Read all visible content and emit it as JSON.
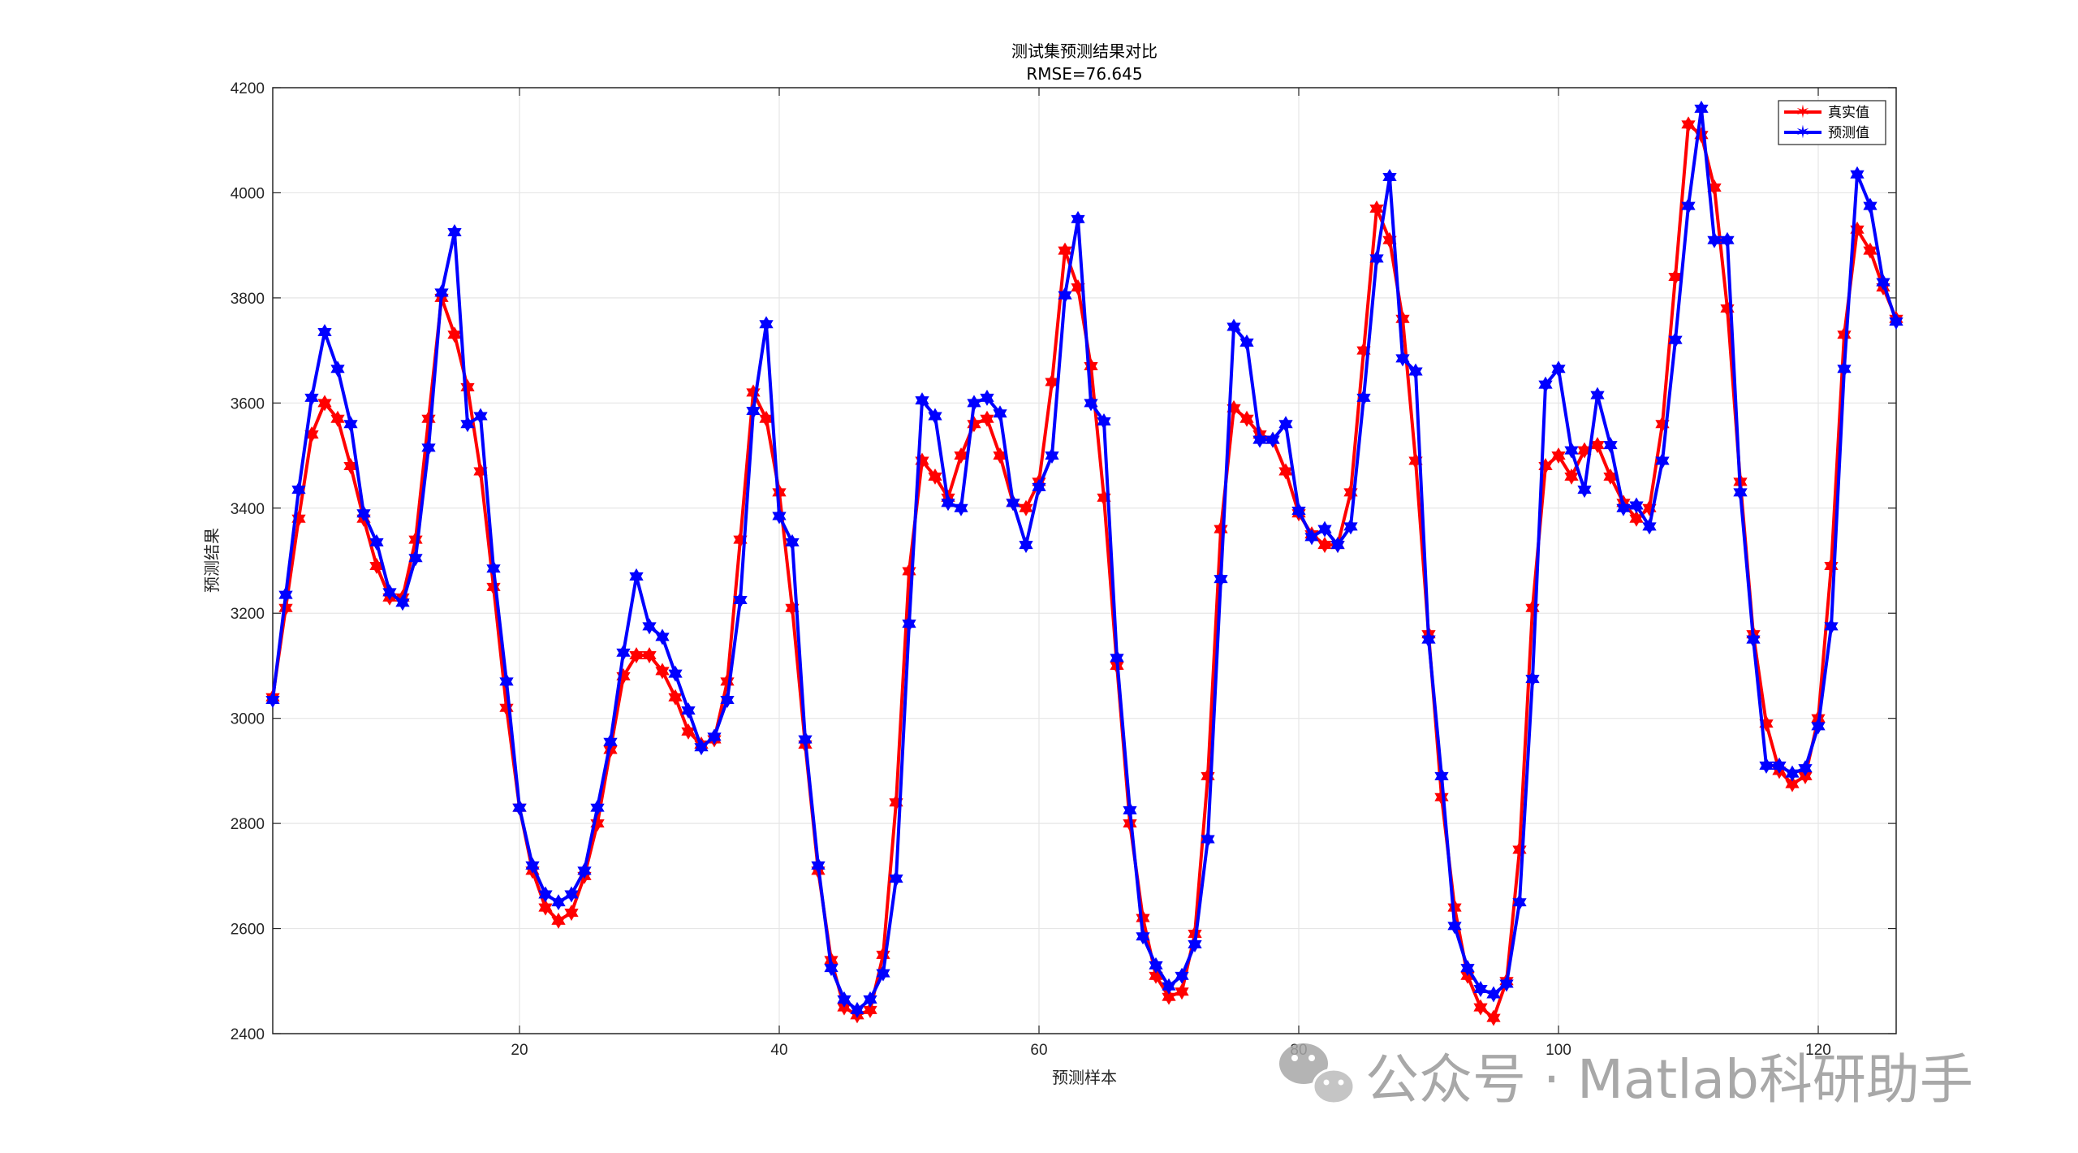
{
  "chart_data": {
    "type": "line",
    "title": "测试集预测结果对比",
    "subtitle": "RMSE=76.645",
    "xlabel": "预测样本",
    "ylabel": "预测结果",
    "xlim": [
      1,
      126
    ],
    "ylim": [
      2400,
      4200
    ],
    "xticks": [
      20,
      40,
      60,
      80,
      100,
      120
    ],
    "yticks": [
      2400,
      2600,
      2800,
      3000,
      3200,
      3400,
      3600,
      3800,
      4000,
      4200
    ],
    "grid": true,
    "legend_position": "top-right",
    "x": [
      1,
      2,
      3,
      4,
      5,
      6,
      7,
      8,
      9,
      10,
      11,
      12,
      13,
      14,
      15,
      16,
      17,
      18,
      19,
      20,
      21,
      22,
      23,
      24,
      25,
      26,
      27,
      28,
      29,
      30,
      31,
      32,
      33,
      34,
      35,
      36,
      37,
      38,
      39,
      40,
      41,
      42,
      43,
      44,
      45,
      46,
      47,
      48,
      49,
      50,
      51,
      52,
      53,
      54,
      55,
      56,
      57,
      58,
      59,
      60,
      61,
      62,
      63,
      64,
      65,
      66,
      67,
      68,
      69,
      70,
      71,
      72,
      73,
      74,
      75,
      76,
      77,
      78,
      79,
      80,
      81,
      82,
      83,
      84,
      85,
      86,
      87,
      88,
      89,
      90,
      91,
      92,
      93,
      94,
      95,
      96,
      97,
      98,
      99,
      100,
      101,
      102,
      103,
      104,
      105,
      106,
      107,
      108,
      109,
      110,
      111,
      112,
      113,
      114,
      115,
      116,
      117,
      118,
      119,
      120,
      121,
      122,
      123,
      124,
      125,
      126
    ],
    "series": [
      {
        "name": "真实值",
        "color": "#ff0000",
        "values": [
          3040,
          3210,
          3380,
          3540,
          3600,
          3570,
          3480,
          3380,
          3290,
          3230,
          3230,
          3340,
          3570,
          3800,
          3730,
          3630,
          3470,
          3250,
          3020,
          2830,
          2710,
          2640,
          2615,
          2630,
          2700,
          2800,
          2940,
          3080,
          3120,
          3120,
          3090,
          3040,
          2975,
          2950,
          2960,
          3070,
          3340,
          3620,
          3570,
          3430,
          3210,
          2950,
          2710,
          2540,
          2450,
          2435,
          2445,
          2550,
          2840,
          3280,
          3490,
          3460,
          3420,
          3500,
          3560,
          3570,
          3500,
          3410,
          3400,
          3450,
          3640,
          3890,
          3820,
          3670,
          3420,
          3100,
          2800,
          2620,
          2510,
          2470,
          2480,
          2590,
          2890,
          3360,
          3590,
          3570,
          3540,
          3530,
          3470,
          3390,
          3350,
          3330,
          3330,
          3430,
          3700,
          3970,
          3910,
          3760,
          3490,
          3160,
          2850,
          2640,
          2510,
          2450,
          2430,
          2500,
          2750,
          3210,
          3480,
          3500,
          3460,
          3510,
          3520,
          3460,
          3410,
          3380,
          3400,
          3560,
          3840,
          4130,
          4110,
          4010,
          3780,
          3450,
          3160,
          2990,
          2900,
          2875,
          2890,
          3000,
          3290,
          3730,
          3930,
          3890,
          3820,
          3760
        ]
      },
      {
        "name": "预测值",
        "color": "#0000ff",
        "values": [
          3035,
          3235,
          3435,
          3610,
          3735,
          3665,
          3560,
          3390,
          3335,
          3240,
          3220,
          3305,
          3515,
          3810,
          3925,
          3560,
          3575,
          3285,
          3070,
          2830,
          2720,
          2665,
          2650,
          2665,
          2710,
          2830,
          2955,
          3125,
          3270,
          3175,
          3155,
          3085,
          3015,
          2945,
          2965,
          3035,
          3225,
          3585,
          3750,
          3385,
          3335,
          2960,
          2720,
          2525,
          2465,
          2445,
          2465,
          2515,
          2695,
          3180,
          3605,
          3575,
          3410,
          3400,
          3600,
          3610,
          3580,
          3410,
          3330,
          3440,
          3500,
          3805,
          3950,
          3600,
          3565,
          3115,
          2825,
          2585,
          2530,
          2490,
          2510,
          2570,
          2770,
          3265,
          3745,
          3715,
          3530,
          3530,
          3560,
          3395,
          3345,
          3360,
          3330,
          3365,
          3610,
          3875,
          4030,
          3685,
          3660,
          3150,
          2890,
          2605,
          2525,
          2485,
          2475,
          2495,
          2650,
          3075,
          3635,
          3665,
          3510,
          3435,
          3615,
          3520,
          3400,
          3405,
          3365,
          3490,
          3720,
          3975,
          4160,
          3910,
          3910,
          3430,
          3150,
          2910,
          2910,
          2895,
          2905,
          2985,
          3175,
          3665,
          4035,
          3975,
          3830,
          3755
        ]
      }
    ]
  },
  "watermark": {
    "text": "公众号 · Matlab科研助手",
    "icon": "wechat-icon"
  }
}
